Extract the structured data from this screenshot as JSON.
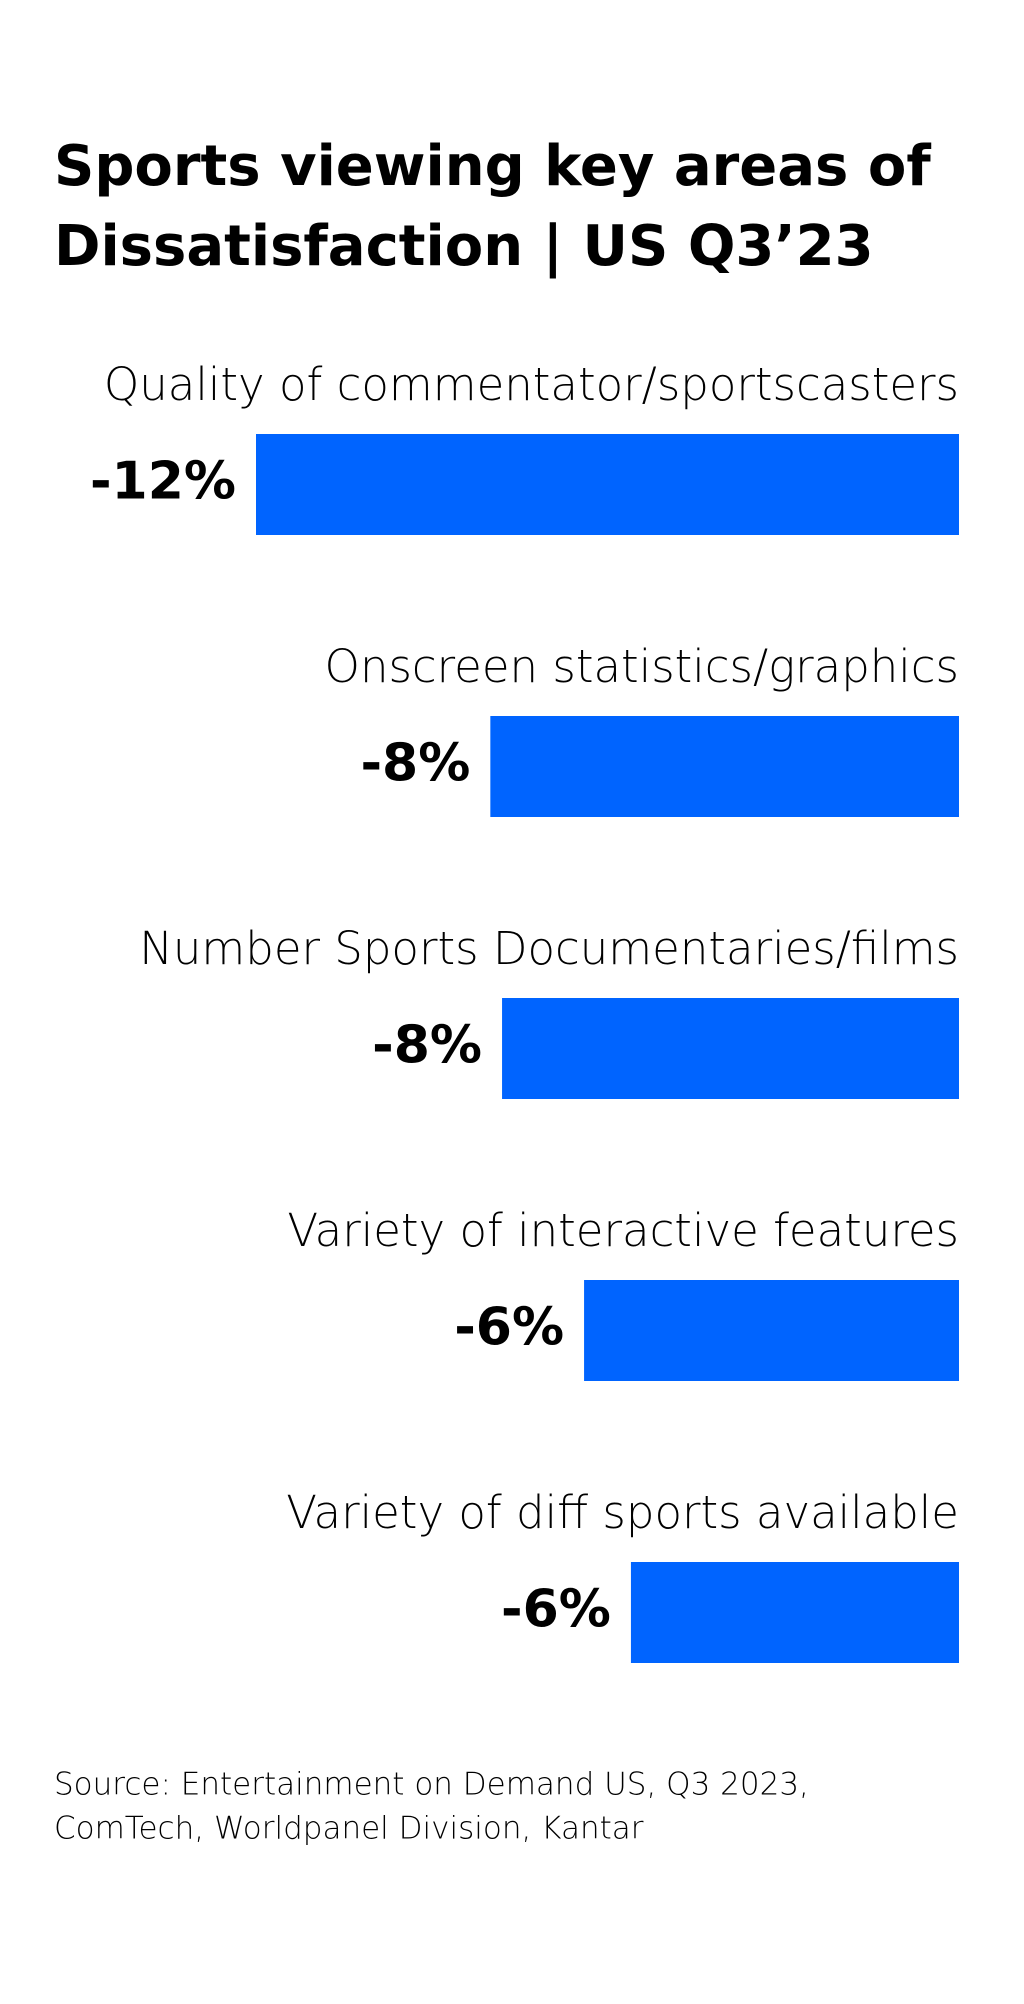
{
  "chart_data": {
    "type": "hbar",
    "title": [
      "Sports viewing key areas of",
      "Dissatisfaction | US Q3’23"
    ],
    "categories": [
      "Quality of commentator/sportscasters",
      "Onscreen statistics/graphics",
      "Number Sports Documentaries/films",
      "Variety of interactive features",
      "Variety of diff sports available"
    ],
    "values": [
      -12,
      -8,
      -7.8,
      -6.4,
      -5.6
    ],
    "value_labels": [
      "-12%",
      "-8%",
      "-8%",
      "-6%",
      "-6%"
    ],
    "color": "#0064ff",
    "source": [
      "Source: Entertainment on Demand US, Q3 2023,",
      "ComTech, Worldpanel Division, Kantar"
    ]
  }
}
